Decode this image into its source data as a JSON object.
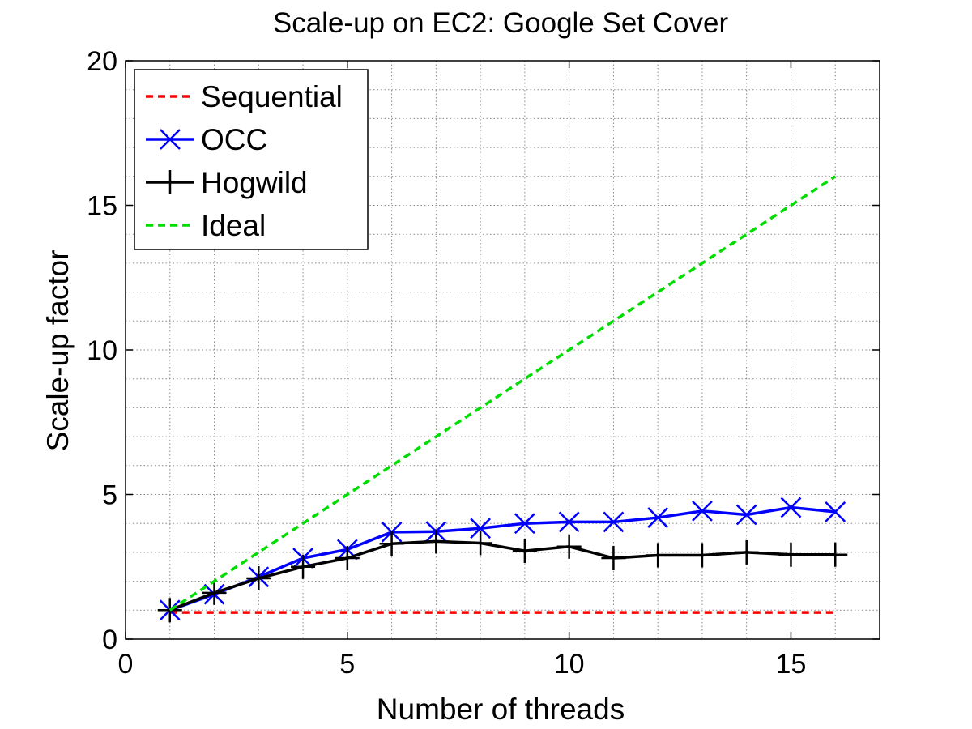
{
  "chart_data": {
    "type": "line",
    "title": "Scale-up on EC2: Google Set Cover",
    "xlabel": "Number of threads",
    "ylabel": "Scale-up factor",
    "xlim": [
      0,
      17
    ],
    "ylim": [
      0,
      20
    ],
    "xticks": [
      "0",
      "5",
      "10",
      "15"
    ],
    "yticks": [
      "0",
      "5",
      "10",
      "15",
      "20"
    ],
    "grid": true,
    "legend_position": "top-left",
    "x": [
      1,
      2,
      3,
      4,
      5,
      6,
      7,
      8,
      9,
      10,
      11,
      12,
      13,
      14,
      15,
      16
    ],
    "series": [
      {
        "name": "Sequential",
        "color": "#ff0000",
        "style": "dashed",
        "marker": "none",
        "x": [
          1,
          16
        ],
        "values": [
          0.92,
          0.92
        ]
      },
      {
        "name": "OCC",
        "color": "#0000ff",
        "style": "solid",
        "marker": "x",
        "values": [
          1.0,
          1.55,
          2.15,
          2.8,
          3.1,
          3.7,
          3.72,
          3.83,
          4.0,
          4.05,
          4.05,
          4.2,
          4.43,
          4.3,
          4.55,
          4.4
        ]
      },
      {
        "name": "Hogwild",
        "color": "#000000",
        "style": "solid",
        "marker": "+",
        "values": [
          1.0,
          1.6,
          2.1,
          2.5,
          2.8,
          3.3,
          3.38,
          3.32,
          3.05,
          3.2,
          2.8,
          2.9,
          2.9,
          3.0,
          2.92,
          2.92
        ]
      },
      {
        "name": "Ideal",
        "color": "#00dd00",
        "style": "dashed",
        "marker": "none",
        "x": [
          1,
          16
        ],
        "values": [
          1,
          16
        ]
      }
    ]
  }
}
